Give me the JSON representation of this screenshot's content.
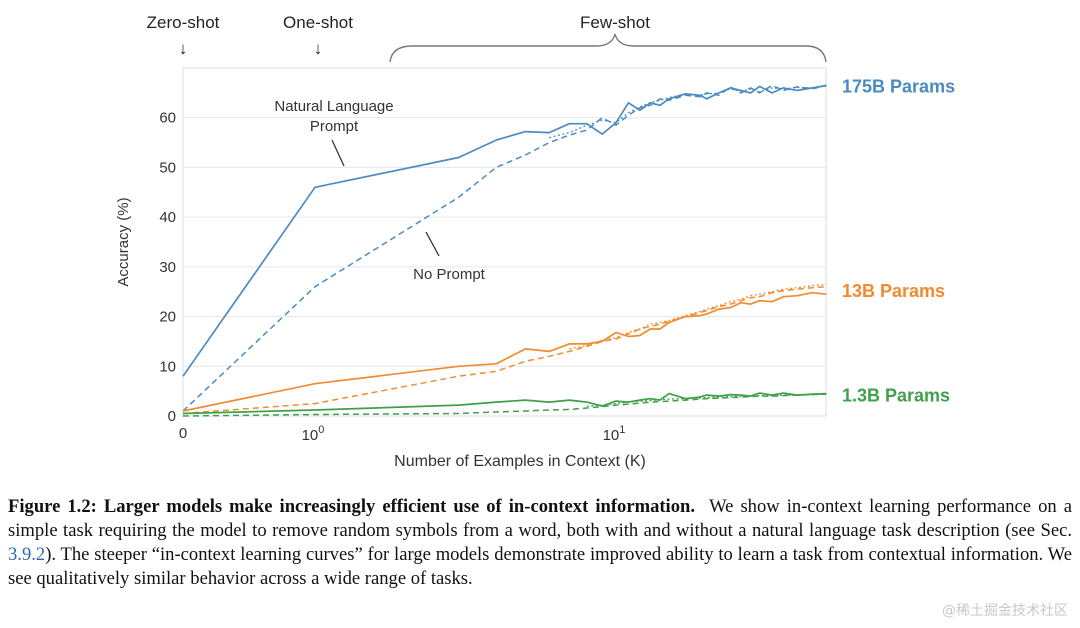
{
  "chart_data": {
    "type": "line",
    "title": "",
    "xlabel": "Number of Examples in Context  (K)",
    "ylabel": "Accuracy (%)",
    "xscale": "symlog",
    "xlim": [
      0,
      50
    ],
    "ylim": [
      0,
      70
    ],
    "yticks": [
      "0",
      "10",
      "20",
      "30",
      "40",
      "50",
      "60"
    ],
    "xticks": {
      "zero": "0",
      "base": "10",
      "exp1": "0",
      "exp2": "1"
    },
    "colors": {
      "175B": "#4a8bc2",
      "13B": "#f28b2e",
      "1.3B": "#3fa04a"
    },
    "series": [
      {
        "name": "175B Params",
        "model": "175B",
        "style": "solid",
        "prompt": "Natural Language Prompt",
        "points": [
          [
            0,
            8
          ],
          [
            1,
            46
          ],
          [
            3,
            52
          ],
          [
            4,
            55.5
          ],
          [
            5,
            57.2
          ],
          [
            6,
            57
          ],
          [
            7,
            58.8
          ],
          [
            8,
            58.8
          ],
          [
            9,
            56.7
          ],
          [
            10,
            59
          ],
          [
            11,
            63
          ],
          [
            12,
            61.5
          ],
          [
            13,
            63
          ],
          [
            14,
            62.5
          ],
          [
            15,
            63.8
          ],
          [
            17,
            64.8
          ],
          [
            19,
            64.5
          ],
          [
            20,
            63.8
          ],
          [
            22,
            65
          ],
          [
            24,
            66
          ],
          [
            26,
            65.5
          ],
          [
            28,
            65
          ],
          [
            30,
            66.3
          ],
          [
            33,
            65
          ],
          [
            36,
            66
          ],
          [
            40,
            65.5
          ],
          [
            45,
            66
          ],
          [
            50,
            66.5
          ]
        ]
      },
      {
        "name": "175B Params",
        "model": "175B",
        "style": "dashed",
        "prompt": "No Prompt",
        "points": [
          [
            0,
            1
          ],
          [
            1,
            26
          ],
          [
            3,
            44
          ],
          [
            4,
            50
          ],
          [
            5,
            52.5
          ],
          [
            6,
            55
          ],
          [
            7,
            56.5
          ],
          [
            8,
            57.5
          ],
          [
            9,
            60
          ],
          [
            10,
            58.5
          ],
          [
            11,
            60.5
          ],
          [
            12,
            62
          ],
          [
            13,
            62.5
          ],
          [
            14,
            63.8
          ],
          [
            15,
            63.5
          ],
          [
            17,
            64.5
          ],
          [
            19,
            64.2
          ],
          [
            20,
            65
          ],
          [
            22,
            64.5
          ],
          [
            24,
            66.2
          ],
          [
            26,
            65
          ],
          [
            28,
            66
          ],
          [
            30,
            65
          ],
          [
            33,
            66.5
          ],
          [
            36,
            65.5
          ],
          [
            40,
            66.2
          ],
          [
            45,
            65.8
          ],
          [
            50,
            66.5
          ]
        ]
      },
      {
        "name": "175B Params",
        "model": "175B",
        "style": "dotted",
        "prompt": "",
        "points": [
          [
            6,
            56
          ],
          [
            7,
            57
          ],
          [
            8,
            58.5
          ],
          [
            9,
            59.5
          ],
          [
            10,
            59
          ],
          [
            11,
            61
          ],
          [
            12,
            62.2
          ],
          [
            13,
            63
          ],
          [
            14,
            63.5
          ],
          [
            15,
            64
          ],
          [
            17,
            64.8
          ],
          [
            19,
            64.5
          ],
          [
            20,
            64.8
          ],
          [
            22,
            65
          ],
          [
            24,
            65.8
          ],
          [
            26,
            65.3
          ],
          [
            28,
            65.8
          ],
          [
            30,
            65.2
          ],
          [
            33,
            66
          ],
          [
            36,
            65.8
          ],
          [
            40,
            66.1
          ],
          [
            45,
            66
          ],
          [
            50,
            66.4
          ]
        ]
      },
      {
        "name": "13B Params",
        "model": "13B",
        "style": "solid",
        "prompt": "Natural Language Prompt",
        "points": [
          [
            0,
            1
          ],
          [
            1,
            6.5
          ],
          [
            3,
            10
          ],
          [
            4,
            10.5
          ],
          [
            5,
            13.5
          ],
          [
            6,
            13
          ],
          [
            7,
            14.5
          ],
          [
            8,
            14.5
          ],
          [
            9,
            15
          ],
          [
            10,
            16.8
          ],
          [
            11,
            16
          ],
          [
            12,
            16.2
          ],
          [
            13,
            17.5
          ],
          [
            14,
            17.5
          ],
          [
            15,
            18.8
          ],
          [
            17,
            20
          ],
          [
            19,
            20.2
          ],
          [
            20,
            20.5
          ],
          [
            22,
            21.5
          ],
          [
            24,
            21.8
          ],
          [
            26,
            22.8
          ],
          [
            28,
            22.5
          ],
          [
            30,
            23.2
          ],
          [
            33,
            23
          ],
          [
            36,
            24
          ],
          [
            40,
            24.2
          ],
          [
            45,
            24.8
          ],
          [
            50,
            24.5
          ]
        ]
      },
      {
        "name": "13B Params",
        "model": "13B",
        "style": "dashed",
        "prompt": "No Prompt",
        "points": [
          [
            0,
            0.5
          ],
          [
            1,
            2.5
          ],
          [
            3,
            8
          ],
          [
            4,
            9
          ],
          [
            5,
            11
          ],
          [
            6,
            12
          ],
          [
            7,
            13
          ],
          [
            8,
            14
          ],
          [
            9,
            15
          ],
          [
            10,
            15.5
          ],
          [
            11,
            16.5
          ],
          [
            12,
            17.5
          ],
          [
            13,
            18
          ],
          [
            14,
            18.5
          ],
          [
            15,
            19
          ],
          [
            17,
            20
          ],
          [
            19,
            20.8
          ],
          [
            20,
            21.2
          ],
          [
            22,
            22
          ],
          [
            24,
            22.5
          ],
          [
            26,
            23.2
          ],
          [
            28,
            23.8
          ],
          [
            30,
            24
          ],
          [
            33,
            24.8
          ],
          [
            36,
            25.2
          ],
          [
            40,
            25.5
          ],
          [
            45,
            25.8
          ],
          [
            50,
            26
          ]
        ]
      },
      {
        "name": "13B Params",
        "model": "13B",
        "style": "dotted",
        "prompt": "",
        "points": [
          [
            7,
            13.5
          ],
          [
            8,
            14.2
          ],
          [
            9,
            15.2
          ],
          [
            10,
            15.8
          ],
          [
            11,
            16.8
          ],
          [
            12,
            17.5
          ],
          [
            13,
            18.5
          ],
          [
            14,
            18.8
          ],
          [
            15,
            19.2
          ],
          [
            17,
            20.2
          ],
          [
            19,
            21
          ],
          [
            20,
            21.5
          ],
          [
            22,
            22.2
          ],
          [
            24,
            23
          ],
          [
            26,
            23.5
          ],
          [
            28,
            24.2
          ],
          [
            30,
            24.5
          ],
          [
            33,
            25
          ],
          [
            36,
            25.5
          ],
          [
            40,
            25.8
          ],
          [
            45,
            26.2
          ],
          [
            50,
            26.5
          ]
        ]
      },
      {
        "name": "1.3B Params",
        "model": "1.3B",
        "style": "solid",
        "prompt": "Natural Language Prompt",
        "points": [
          [
            0,
            0.5
          ],
          [
            1,
            1.2
          ],
          [
            3,
            2.2
          ],
          [
            4,
            2.8
          ],
          [
            5,
            3.2
          ],
          [
            6,
            2.8
          ],
          [
            7,
            3.2
          ],
          [
            8,
            2.8
          ],
          [
            9,
            2
          ],
          [
            10,
            3
          ],
          [
            11,
            2.8
          ],
          [
            12,
            3.2
          ],
          [
            13,
            3.5
          ],
          [
            14,
            3.2
          ],
          [
            15,
            4.5
          ],
          [
            17,
            3.5
          ],
          [
            19,
            3.8
          ],
          [
            20,
            4.2
          ],
          [
            22,
            4
          ],
          [
            24,
            4.3
          ],
          [
            26,
            4.2
          ],
          [
            28,
            4
          ],
          [
            30,
            4.6
          ],
          [
            33,
            4.2
          ],
          [
            36,
            4.6
          ],
          [
            40,
            4.2
          ],
          [
            45,
            4.4
          ],
          [
            50,
            4.5
          ]
        ]
      },
      {
        "name": "1.3B Params",
        "model": "1.3B",
        "style": "dashed",
        "prompt": "No Prompt",
        "points": [
          [
            0,
            0
          ],
          [
            1,
            0.3
          ],
          [
            3,
            0.5
          ],
          [
            4,
            0.8
          ],
          [
            5,
            1
          ],
          [
            6,
            1.2
          ],
          [
            7,
            1.3
          ],
          [
            8,
            1.6
          ],
          [
            9,
            1.9
          ],
          [
            10,
            2.2
          ],
          [
            11,
            2.4
          ],
          [
            12,
            2.6
          ],
          [
            13,
            2.8
          ],
          [
            14,
            2.9
          ],
          [
            15,
            3
          ],
          [
            17,
            3.2
          ],
          [
            19,
            3.4
          ],
          [
            20,
            3.5
          ],
          [
            22,
            3.6
          ],
          [
            24,
            3.7
          ],
          [
            26,
            3.8
          ],
          [
            28,
            3.9
          ],
          [
            30,
            4
          ],
          [
            33,
            4
          ],
          [
            36,
            4.1
          ],
          [
            40,
            4.2
          ],
          [
            45,
            4.3
          ],
          [
            50,
            4.4
          ]
        ]
      },
      {
        "name": "1.3B Params",
        "model": "1.3B",
        "style": "dotted",
        "prompt": "",
        "points": [
          [
            8,
            2
          ],
          [
            9,
            2.2
          ],
          [
            10,
            2.5
          ],
          [
            11,
            2.8
          ],
          [
            12,
            3
          ],
          [
            13,
            3.1
          ],
          [
            14,
            3.3
          ],
          [
            15,
            3.4
          ],
          [
            17,
            3.5
          ],
          [
            19,
            3.6
          ],
          [
            20,
            3.7
          ],
          [
            22,
            3.8
          ],
          [
            24,
            3.9
          ],
          [
            26,
            4
          ],
          [
            28,
            4
          ],
          [
            30,
            4.1
          ],
          [
            33,
            4.1
          ],
          [
            36,
            4.2
          ],
          [
            40,
            4.2
          ],
          [
            45,
            4.3
          ],
          [
            50,
            4.4
          ]
        ]
      }
    ],
    "series_labels": [
      {
        "text": "175B Params",
        "model": "175B",
        "y": 66.5
      },
      {
        "text": "13B Params",
        "model": "13B",
        "y": 25.3
      },
      {
        "text": "1.3B Params",
        "model": "1.3B",
        "y": 4.3
      }
    ],
    "phases": {
      "zero": "Zero-shot",
      "one": "One-shot",
      "few": "Few-shot",
      "arrow": "↓"
    },
    "annotations": {
      "nlp_line1": "Natural Language",
      "nlp_line2": "Prompt",
      "no_prompt": "No Prompt"
    }
  },
  "caption": {
    "label": "Figure 1.2:",
    "title": "Larger models make increasingly efficient use of in-context information.",
    "text1": "We show in-context learning performance on a simple task requiring the model to remove random symbols from a word, both with and without a natural language task description (see Sec.",
    "ref": "3.9.2",
    "text2": "). The steeper “in-context learning curves” for large models demonstrate improved ability to learn a task from contextual information. We see qualitatively similar behavior across a wide range of tasks."
  },
  "watermark": "@稀土掘金技术社区"
}
